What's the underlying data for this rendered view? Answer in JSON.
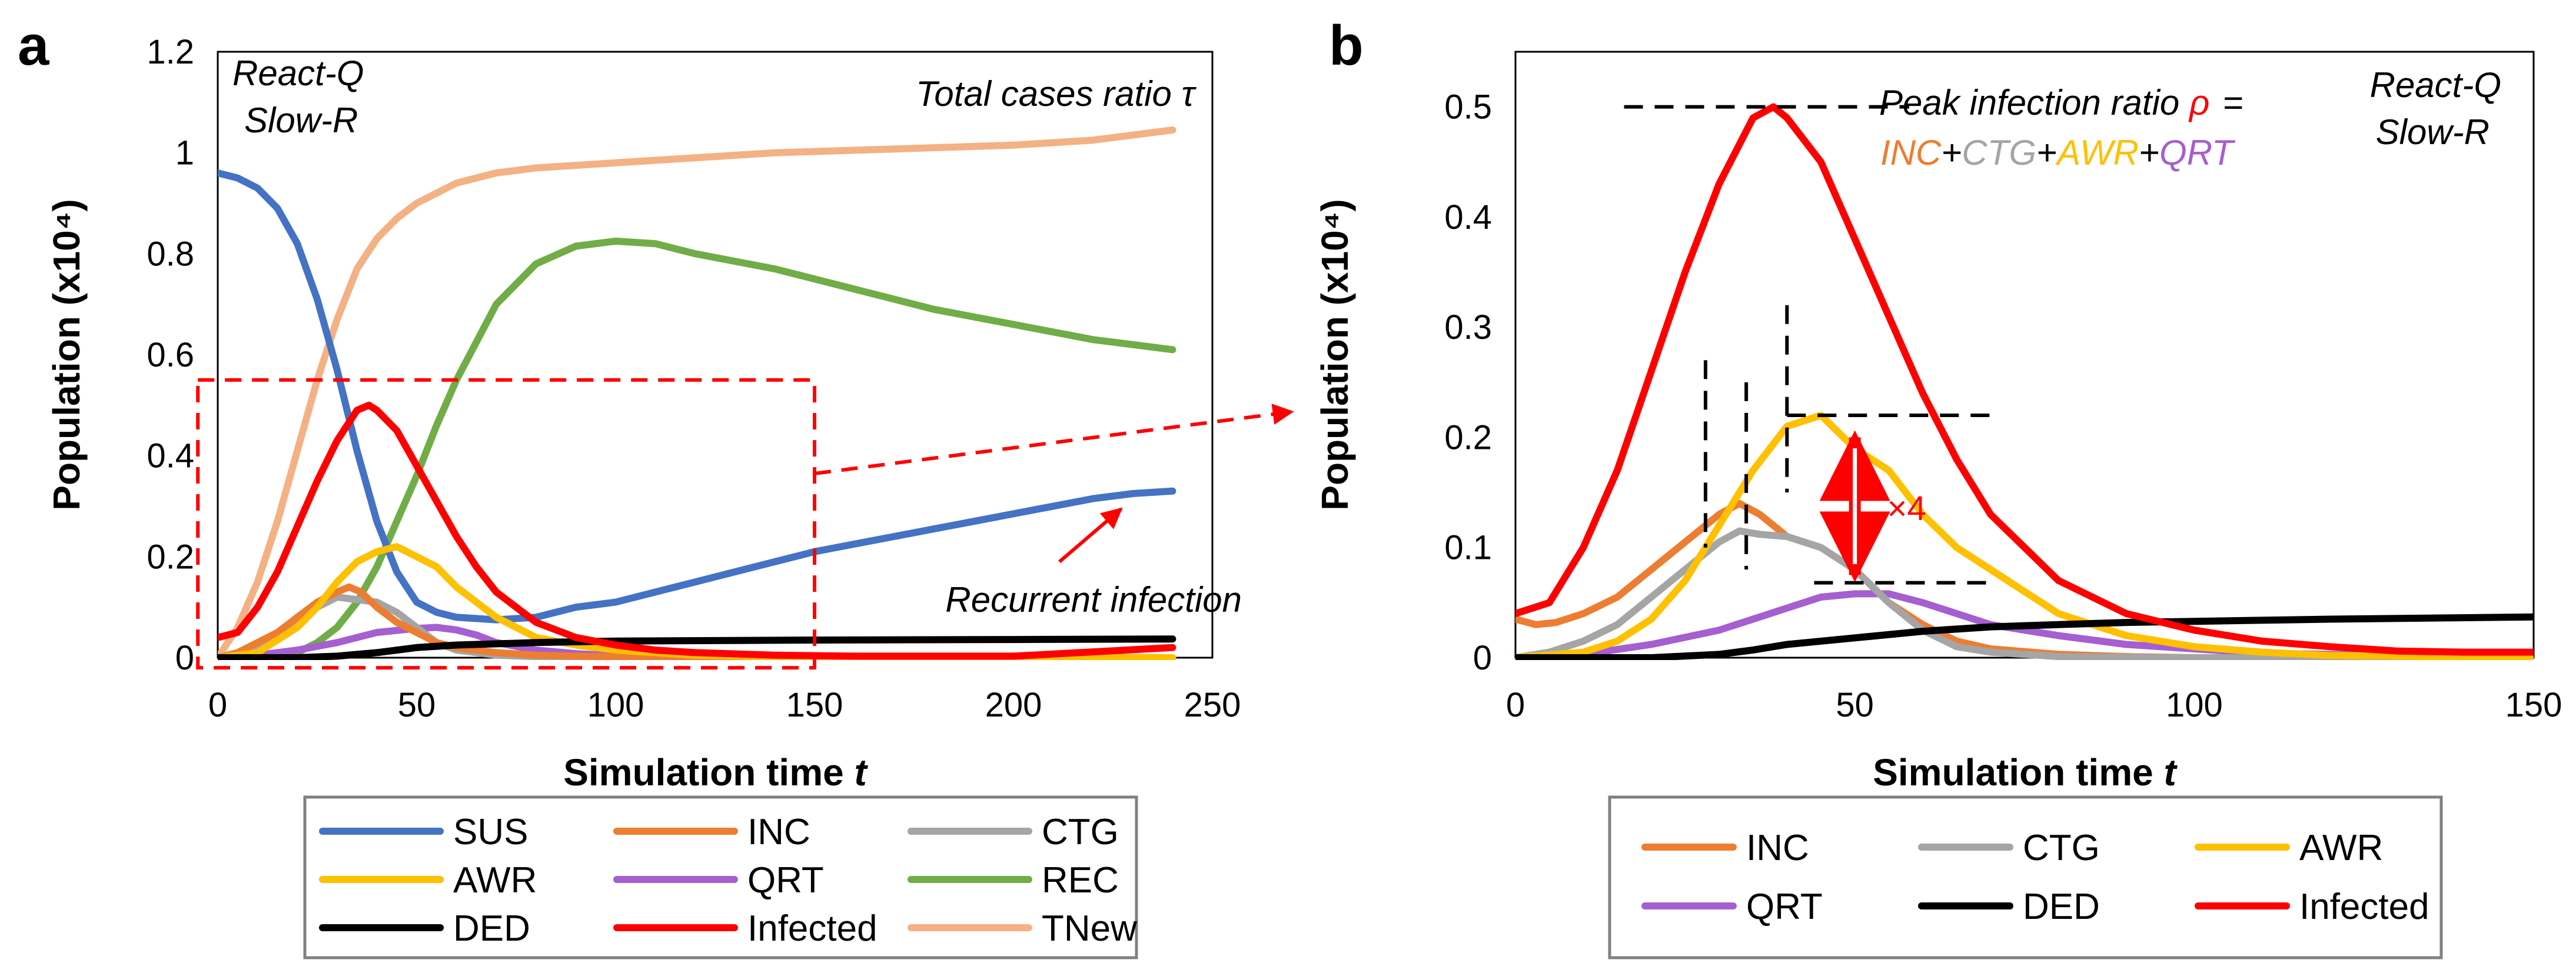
{
  "colors": {
    "SUS": "#4472C4",
    "INC": "#ED7D31",
    "CTG": "#A5A5A5",
    "AWR": "#FFC000",
    "QRT": "#A55FD0",
    "REC": "#70AD47",
    "DED": "#000000",
    "Infected": "#FF0000",
    "TNew": "#F4B183"
  },
  "chart_data": [
    {
      "panel": "a",
      "type": "line",
      "xlabel": "Simulation time t",
      "ylabel": "Population (x10⁴)",
      "xlim": [
        0,
        250
      ],
      "ylim": [
        0,
        1.2
      ],
      "xticks": [
        "0",
        "50",
        "100",
        "150",
        "200",
        "250"
      ],
      "yticks": [
        "0",
        "0.2",
        "0.4",
        "0.6",
        "0.8",
        "1",
        "1.2"
      ],
      "annotations": {
        "scenario_line1": "React-Q",
        "scenario_line2": "Slow-R",
        "total_cases": "Total cases ratio τ",
        "recurrent": "Recurrent infection"
      },
      "legend": [
        "SUS",
        "INC",
        "CTG",
        "AWR",
        "QRT",
        "REC",
        "DED",
        "Infected",
        "TNew"
      ],
      "zoom_box": {
        "x": [
          -5,
          150
        ],
        "y": [
          -0.02,
          0.55
        ]
      },
      "series": [
        {
          "name": "SUS",
          "x": [
            0,
            5,
            10,
            15,
            20,
            25,
            30,
            35,
            40,
            45,
            50,
            55,
            60,
            70,
            80,
            90,
            100,
            110,
            120,
            130,
            140,
            150,
            160,
            170,
            180,
            190,
            200,
            210,
            220,
            230,
            240
          ],
          "values": [
            0.96,
            0.95,
            0.93,
            0.89,
            0.82,
            0.71,
            0.57,
            0.41,
            0.27,
            0.17,
            0.11,
            0.09,
            0.08,
            0.075,
            0.08,
            0.1,
            0.11,
            0.13,
            0.15,
            0.17,
            0.19,
            0.21,
            0.225,
            0.24,
            0.255,
            0.27,
            0.285,
            0.3,
            0.315,
            0.325,
            0.33
          ]
        },
        {
          "name": "INC",
          "x": [
            0,
            5,
            10,
            15,
            20,
            25,
            30,
            33,
            36,
            40,
            45,
            50,
            55,
            60,
            70,
            80,
            90,
            100,
            240
          ],
          "values": [
            0.0,
            0.01,
            0.03,
            0.05,
            0.08,
            0.11,
            0.13,
            0.14,
            0.13,
            0.1,
            0.07,
            0.05,
            0.03,
            0.02,
            0.01,
            0.005,
            0.003,
            0.002,
            0.0
          ]
        },
        {
          "name": "CTG",
          "x": [
            0,
            5,
            10,
            15,
            20,
            25,
            30,
            35,
            40,
            45,
            50,
            55,
            60,
            70,
            80,
            90,
            240
          ],
          "values": [
            0.0,
            0.01,
            0.02,
            0.04,
            0.07,
            0.1,
            0.12,
            0.115,
            0.11,
            0.09,
            0.06,
            0.03,
            0.015,
            0.005,
            0.002,
            0.001,
            0.0
          ]
        },
        {
          "name": "AWR",
          "x": [
            0,
            10,
            20,
            25,
            30,
            35,
            40,
            45,
            50,
            55,
            60,
            65,
            70,
            75,
            80,
            90,
            100,
            110,
            120,
            150,
            240
          ],
          "values": [
            0.0,
            0.01,
            0.06,
            0.1,
            0.15,
            0.19,
            0.21,
            0.22,
            0.2,
            0.18,
            0.14,
            0.11,
            0.08,
            0.06,
            0.04,
            0.025,
            0.015,
            0.01,
            0.005,
            0.0,
            0.0
          ]
        },
        {
          "name": "QRT",
          "x": [
            0,
            10,
            20,
            30,
            40,
            50,
            55,
            60,
            65,
            70,
            80,
            90,
            100,
            240
          ],
          "values": [
            0.0,
            0.005,
            0.015,
            0.03,
            0.05,
            0.058,
            0.06,
            0.055,
            0.045,
            0.03,
            0.015,
            0.008,
            0.004,
            0.0
          ]
        },
        {
          "name": "REC",
          "x": [
            0,
            10,
            20,
            25,
            30,
            35,
            40,
            45,
            50,
            55,
            60,
            70,
            80,
            90,
            100,
            110,
            120,
            140,
            160,
            180,
            200,
            220,
            240
          ],
          "values": [
            0.0,
            0.0,
            0.01,
            0.03,
            0.06,
            0.11,
            0.18,
            0.27,
            0.36,
            0.46,
            0.55,
            0.7,
            0.78,
            0.815,
            0.825,
            0.82,
            0.8,
            0.77,
            0.73,
            0.69,
            0.66,
            0.63,
            0.61
          ]
        },
        {
          "name": "DED",
          "x": [
            0,
            20,
            30,
            40,
            50,
            60,
            80,
            100,
            150,
            200,
            240
          ],
          "values": [
            0.0,
            0.0,
            0.003,
            0.01,
            0.02,
            0.025,
            0.03,
            0.033,
            0.035,
            0.036,
            0.037
          ]
        },
        {
          "name": "Infected",
          "x": [
            0,
            5,
            10,
            15,
            20,
            25,
            30,
            35,
            38,
            40,
            45,
            50,
            55,
            60,
            65,
            70,
            80,
            90,
            100,
            110,
            120,
            140,
            160,
            200,
            240
          ],
          "values": [
            0.04,
            0.05,
            0.1,
            0.17,
            0.26,
            0.35,
            0.43,
            0.49,
            0.5,
            0.49,
            0.45,
            0.38,
            0.31,
            0.24,
            0.18,
            0.13,
            0.07,
            0.04,
            0.025,
            0.015,
            0.01,
            0.005,
            0.003,
            0.003,
            0.02
          ]
        },
        {
          "name": "TNew",
          "x": [
            0,
            5,
            10,
            15,
            20,
            25,
            30,
            35,
            40,
            45,
            50,
            55,
            60,
            70,
            80,
            90,
            100,
            120,
            140,
            160,
            180,
            200,
            220,
            240
          ],
          "values": [
            0.0,
            0.06,
            0.15,
            0.27,
            0.41,
            0.55,
            0.67,
            0.77,
            0.83,
            0.87,
            0.9,
            0.92,
            0.94,
            0.96,
            0.97,
            0.975,
            0.98,
            0.99,
            1.0,
            1.005,
            1.01,
            1.015,
            1.025,
            1.045
          ]
        }
      ]
    },
    {
      "panel": "b",
      "type": "line",
      "xlabel": "Simulation time t",
      "ylabel": "Population (x10⁴)",
      "xlim": [
        0,
        150
      ],
      "ylim": [
        0,
        0.55
      ],
      "xticks": [
        "0",
        "50",
        "100",
        "150"
      ],
      "yticks": [
        "0",
        "0.1",
        "0.2",
        "0.3",
        "0.4",
        "0.5"
      ],
      "annotations": {
        "scenario_line1": "React-Q",
        "scenario_line2": "Slow-R",
        "peak_label": "Peak infection ratio",
        "peak_symbol": "ρ",
        "eq": "=",
        "term1": "INC",
        "plus": "+",
        "term2": "CTG",
        "term3": "AWR",
        "term4": "QRT",
        "factor": "×4"
      },
      "legend": [
        "INC",
        "CTG",
        "AWR",
        "QRT",
        "DED",
        "Infected"
      ],
      "series": [
        {
          "name": "INC",
          "x": [
            0,
            3,
            6,
            10,
            15,
            20,
            25,
            28,
            30,
            33,
            36,
            40,
            45,
            50,
            55,
            60,
            65,
            70,
            80,
            90,
            100,
            150
          ],
          "values": [
            0.035,
            0.03,
            0.032,
            0.04,
            0.055,
            0.08,
            0.105,
            0.12,
            0.13,
            0.14,
            0.13,
            0.11,
            0.1,
            0.08,
            0.05,
            0.03,
            0.015,
            0.008,
            0.003,
            0.001,
            0.0,
            0.0
          ]
        },
        {
          "name": "CTG",
          "x": [
            0,
            5,
            10,
            15,
            20,
            25,
            30,
            33,
            36,
            40,
            45,
            50,
            55,
            60,
            65,
            70,
            80,
            100,
            150
          ],
          "values": [
            0.0,
            0.005,
            0.015,
            0.03,
            0.055,
            0.08,
            0.105,
            0.115,
            0.112,
            0.11,
            0.1,
            0.08,
            0.05,
            0.025,
            0.01,
            0.005,
            0.001,
            0.0,
            0.0
          ]
        },
        {
          "name": "AWR",
          "x": [
            0,
            10,
            15,
            20,
            25,
            30,
            35,
            40,
            45,
            50,
            55,
            60,
            65,
            70,
            75,
            80,
            85,
            90,
            100,
            110,
            120,
            150
          ],
          "values": [
            0.0,
            0.005,
            0.015,
            0.035,
            0.07,
            0.12,
            0.17,
            0.21,
            0.22,
            0.19,
            0.17,
            0.13,
            0.1,
            0.08,
            0.06,
            0.04,
            0.03,
            0.02,
            0.01,
            0.005,
            0.002,
            0.0
          ]
        },
        {
          "name": "QRT",
          "x": [
            0,
            10,
            20,
            30,
            35,
            40,
            45,
            50,
            55,
            60,
            65,
            70,
            80,
            90,
            100,
            110,
            150
          ],
          "values": [
            0.0,
            0.003,
            0.012,
            0.025,
            0.035,
            0.045,
            0.055,
            0.058,
            0.058,
            0.05,
            0.04,
            0.03,
            0.02,
            0.012,
            0.008,
            0.004,
            0.0
          ]
        },
        {
          "name": "DED",
          "x": [
            0,
            20,
            30,
            35,
            40,
            50,
            60,
            70,
            80,
            90,
            100,
            120,
            150
          ],
          "values": [
            0.0,
            0.0,
            0.003,
            0.007,
            0.012,
            0.018,
            0.024,
            0.028,
            0.03,
            0.032,
            0.033,
            0.035,
            0.037
          ]
        },
        {
          "name": "Infected",
          "x": [
            0,
            5,
            10,
            15,
            20,
            25,
            30,
            35,
            38,
            40,
            45,
            50,
            55,
            60,
            65,
            70,
            75,
            80,
            90,
            100,
            110,
            120,
            130,
            140,
            150
          ],
          "values": [
            0.04,
            0.05,
            0.1,
            0.17,
            0.26,
            0.35,
            0.43,
            0.49,
            0.5,
            0.49,
            0.45,
            0.38,
            0.31,
            0.24,
            0.18,
            0.13,
            0.1,
            0.07,
            0.04,
            0.025,
            0.015,
            0.01,
            0.006,
            0.005,
            0.005
          ]
        }
      ]
    }
  ]
}
